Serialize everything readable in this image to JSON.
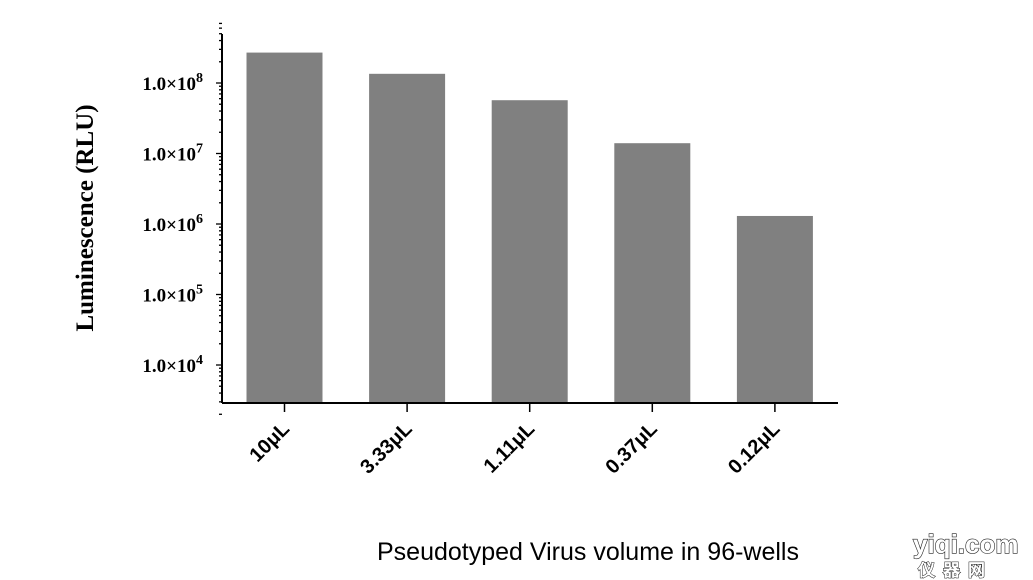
{
  "chart_data": {
    "type": "bar",
    "xlabel": "Pseudotyped Virus volume in 96-wells",
    "ylabel": "Luminescence (RLU)",
    "yscale": "log",
    "ylim": [
      2000,
      700000000
    ],
    "y_ticks": [
      10000,
      100000,
      1000000,
      10000000,
      100000000
    ],
    "y_tick_labels": [
      {
        "base": "1.0×10",
        "exp": "4"
      },
      {
        "base": "1.0×10",
        "exp": "5"
      },
      {
        "base": "1.0×10",
        "exp": "6"
      },
      {
        "base": "1.0×10",
        "exp": "7"
      },
      {
        "base": "1.0×10",
        "exp": "8"
      }
    ],
    "categories": [
      "10μL",
      "3.33μL",
      "1.11μL",
      "0.37μL",
      "0.12μL"
    ],
    "values": [
      270000000,
      135000000,
      57000000,
      14000000,
      1300000
    ],
    "bar_color": "#808080",
    "grid": false,
    "legend": "none"
  },
  "watermark": {
    "line1": "yiqi.com",
    "line2": "仪器网"
  }
}
